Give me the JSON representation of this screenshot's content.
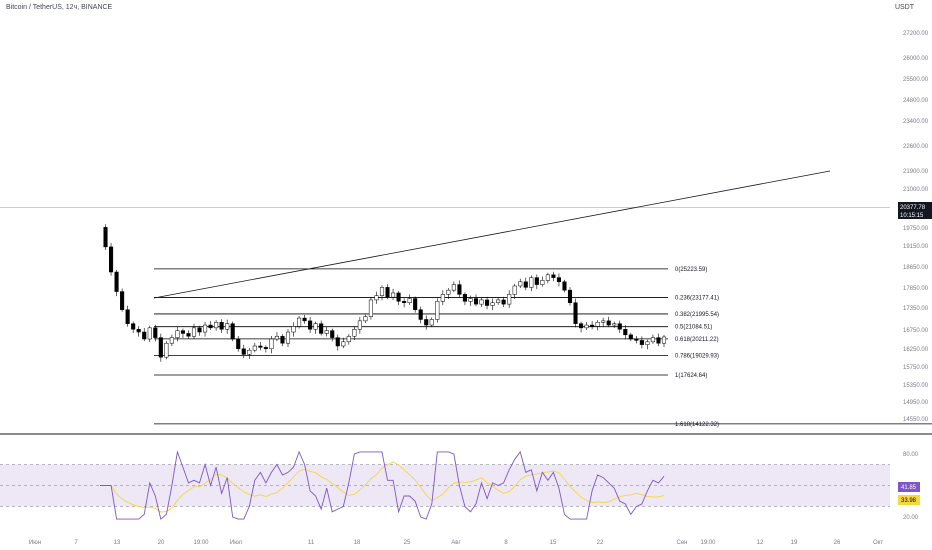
{
  "header": {
    "symbol": "Bitcoin / TetherUS, 12ч, BINANCE"
  },
  "unit_label": "USDT",
  "chart_data": {
    "type": "candlestick",
    "price_axis_ticks": [
      "27200.00",
      "26000.00",
      "25500.00",
      "24800.00",
      "23400.00",
      "22600.00",
      "21900.00",
      "21000.00",
      "19750.00",
      "19150.00",
      "18650.00",
      "17850.00",
      "17350.00",
      "16750.00",
      "16250.00",
      "15750.00",
      "15350.00",
      "14950.00",
      "14550.00"
    ],
    "x_ticks": [
      "Июн",
      "7",
      "13",
      "20",
      "19:00",
      "Июл",
      "11",
      "18",
      "25",
      "Авг",
      "8",
      "15",
      "22",
      "Сен",
      "19:00",
      "12",
      "19",
      "26",
      "Окт"
    ],
    "fibonacci_levels": [
      {
        "ratio": "0",
        "price": "25223.59",
        "label": "0(25223.59)"
      },
      {
        "ratio": "0.236",
        "price": "23177.41",
        "label": "0.236(23177.41)"
      },
      {
        "ratio": "0.382",
        "price": "21995.54",
        "label": "0.382(21995.54)"
      },
      {
        "ratio": "0.5",
        "price": "21084.51",
        "label": "0.5(21084.51)"
      },
      {
        "ratio": "0.618",
        "price": "20211.22",
        "label": "0.618(20211.22)"
      },
      {
        "ratio": "0.786",
        "price": "19029.93",
        "label": "0.786(19029.93)"
      },
      {
        "ratio": "1",
        "price": "17624.64",
        "label": "1(17624.64)"
      },
      {
        "ratio": "1.618",
        "price": "14122.32",
        "label": "1.618(14122.32)"
      }
    ],
    "last_price": "20377.78",
    "countdown": "10:15:15",
    "rsi": {
      "ticks": [
        "80.00",
        "20.00"
      ],
      "rsi_value": "41.85",
      "rsi_ma_value": "33.98",
      "colors": {
        "rsi": "#7e57c2",
        "ma": "#f5d742",
        "band": "#ede7f6"
      }
    },
    "close_series": [
      28200,
      26800,
      25000,
      23600,
      22300,
      21300,
      20900,
      20700,
      20200,
      21000,
      20300,
      18900,
      19900,
      20300,
      20800,
      20600,
      20400,
      21000,
      20700,
      21200,
      21000,
      21400,
      20900,
      21300,
      20200,
      19500,
      19100,
      19400,
      19700,
      19600,
      19500,
      20200,
      20400,
      19900,
      20700,
      21100,
      21700,
      21500,
      20900,
      21300,
      20600,
      20800,
      20300,
      19700,
      20000,
      20400,
      20900,
      21500,
      21800,
      23000,
      23300,
      23900,
      23200,
      23500,
      22900,
      22800,
      23100,
      22300,
      21600,
      21200,
      21600,
      22900,
      23400,
      23700,
      24100,
      23400,
      22900,
      23100,
      22700,
      23000,
      22600,
      22800,
      23000,
      22700,
      23400,
      24000,
      24300,
      23900,
      24600,
      24100,
      24400,
      24800,
      24600,
      24300,
      23700,
      22800,
      21300,
      21000,
      21200,
      21100,
      21400,
      21500,
      21200,
      21300,
      20900,
      20500,
      20200,
      20100,
      19800,
      20000,
      20300,
      19900,
      20350
    ]
  },
  "colors": {
    "candle_up": "#ffffff",
    "candle_down": "#000000",
    "axis_text": "#787b86",
    "fib_line": "#000000",
    "price_tag_bg": "#131722"
  }
}
